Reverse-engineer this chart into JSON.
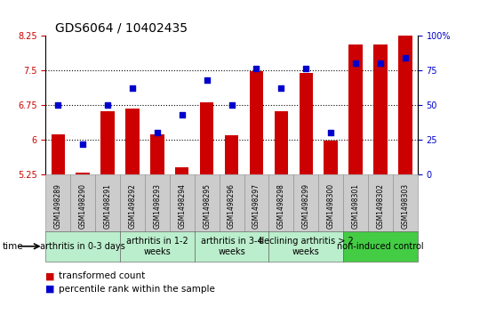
{
  "title": "GDS6064 / 10402435",
  "samples": [
    "GSM1498289",
    "GSM1498290",
    "GSM1498291",
    "GSM1498292",
    "GSM1498293",
    "GSM1498294",
    "GSM1498295",
    "GSM1498296",
    "GSM1498297",
    "GSM1498298",
    "GSM1498299",
    "GSM1498300",
    "GSM1498301",
    "GSM1498302",
    "GSM1498303"
  ],
  "bar_values": [
    6.12,
    5.28,
    6.62,
    6.68,
    6.12,
    5.4,
    6.8,
    6.1,
    7.48,
    6.62,
    7.44,
    5.98,
    8.06,
    8.06,
    8.42
  ],
  "dot_values": [
    50,
    22,
    50,
    62,
    30,
    43,
    68,
    50,
    76,
    62,
    76,
    30,
    80,
    80,
    84
  ],
  "bar_color": "#cc0000",
  "dot_color": "#0000cc",
  "ylim_left": [
    5.25,
    8.25
  ],
  "ylim_right": [
    0,
    100
  ],
  "yticks_left": [
    5.25,
    6.0,
    6.75,
    7.5,
    8.25
  ],
  "yticks_right": [
    0,
    25,
    50,
    75,
    100
  ],
  "ytick_labels_left": [
    "5.25",
    "6",
    "6.75",
    "7.5",
    "8.25"
  ],
  "ytick_labels_right": [
    "0",
    "25",
    "50",
    "75",
    "100%"
  ],
  "hlines": [
    6.0,
    6.75,
    7.5
  ],
  "groups": [
    {
      "label": "arthritis in 0-3 days",
      "start": 0,
      "end": 3,
      "color": "#bbeecc"
    },
    {
      "label": "arthritis in 1-2\nweeks",
      "start": 3,
      "end": 6,
      "color": "#bbeecc"
    },
    {
      "label": "arthritis in 3-4\nweeks",
      "start": 6,
      "end": 9,
      "color": "#bbeecc"
    },
    {
      "label": "declining arthritis > 2\nweeks",
      "start": 9,
      "end": 12,
      "color": "#bbeecc"
    },
    {
      "label": "non-induced control",
      "start": 12,
      "end": 15,
      "color": "#44cc44"
    }
  ],
  "legend_bar_label": "transformed count",
  "legend_dot_label": "percentile rank within the sample",
  "time_label": "time",
  "title_fontsize": 10,
  "tick_fontsize": 7,
  "group_fontsize": 7,
  "legend_fontsize": 7.5,
  "sample_fontsize": 5.5
}
